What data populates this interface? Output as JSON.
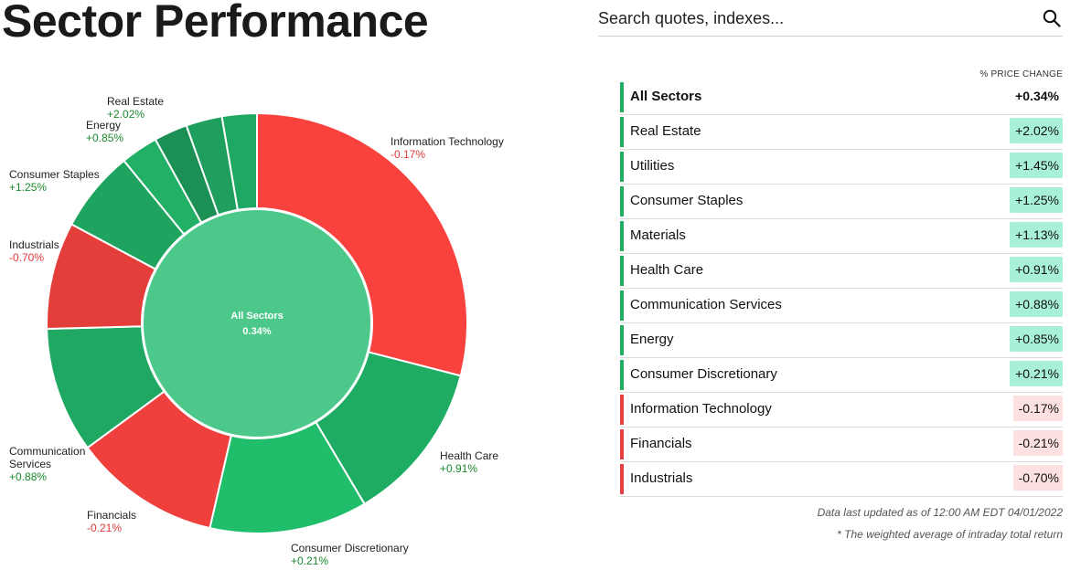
{
  "page": {
    "title": "Sector Performance"
  },
  "search": {
    "placeholder": "Search quotes, indexes..."
  },
  "colors": {
    "positive_text": "#1a8a2e",
    "negative_text": "#e03a3a",
    "positive_badge": "#a8f0da",
    "negative_badge": "#fde0e0",
    "positive_bar": "#1fae62",
    "negative_bar": "#e84040",
    "center_fill": "#4dc88b"
  },
  "chart_data": {
    "type": "pie",
    "center": {
      "label": "All Sectors",
      "value": "0.34%"
    },
    "start_at": "top, clockwise",
    "slices": [
      {
        "name": "Information Technology",
        "change": "-0.17%",
        "weight": 28.2,
        "color": "#f9423e"
      },
      {
        "name": "Health Care",
        "change": "+0.91%",
        "weight": 12.1,
        "color": "#1eab62"
      },
      {
        "name": "Consumer Discretionary",
        "change": "+0.21%",
        "weight": 11.8,
        "color": "#20bd6b"
      },
      {
        "name": "Financials",
        "change": "-0.21%",
        "weight": 11.0,
        "color": "#f0403d"
      },
      {
        "name": "Communication Services",
        "change": "+0.88%",
        "weight": 9.4,
        "color": "#1fa862"
      },
      {
        "name": "Industrials",
        "change": "-0.70%",
        "weight": 8.0,
        "color": "#e33e3a"
      },
      {
        "name": "Consumer Staples",
        "change": "+1.25%",
        "weight": 6.1,
        "color": "#1ea45e"
      },
      {
        "name": "Utilities",
        "change": "",
        "weight": 2.8,
        "color": "#22b066"
      },
      {
        "name": "Materials",
        "change": "",
        "weight": 2.5,
        "color": "#1c8f54"
      },
      {
        "name": "Energy",
        "change": "+0.85%",
        "weight": 2.7,
        "color": "#1f9f5d"
      },
      {
        "name": "Real Estate",
        "change": "+2.02%",
        "weight": 2.6,
        "color": "#1fa862"
      }
    ]
  },
  "labels": [
    {
      "lines": [
        "Information Technology"
      ],
      "change": "-0.17%"
    },
    {
      "lines": [
        "Health Care"
      ],
      "change": "+0.91%"
    },
    {
      "lines": [
        "Consumer Discretionary"
      ],
      "change": "+0.21%"
    },
    {
      "lines": [
        "Financials"
      ],
      "change": "-0.21%"
    },
    {
      "lines": [
        "Communication",
        "Services"
      ],
      "change": "+0.88%"
    },
    {
      "lines": [
        "Industrials"
      ],
      "change": "-0.70%"
    },
    {
      "lines": [
        "Consumer Staples"
      ],
      "change": "+1.25%"
    },
    {
      "lines": [
        "Energy"
      ],
      "change": "+0.85%"
    },
    {
      "lines": [
        "Real Estate"
      ],
      "change": "+2.02%"
    }
  ],
  "table": {
    "header": "% PRICE CHANGE",
    "rows": [
      {
        "name": "All Sectors",
        "value": "+0.34%",
        "direction": "up",
        "emphasis": true
      },
      {
        "name": "Real Estate",
        "value": "+2.02%",
        "direction": "up"
      },
      {
        "name": "Utilities",
        "value": "+1.45%",
        "direction": "up"
      },
      {
        "name": "Consumer Staples",
        "value": "+1.25%",
        "direction": "up"
      },
      {
        "name": "Materials",
        "value": "+1.13%",
        "direction": "up"
      },
      {
        "name": "Health Care",
        "value": "+0.91%",
        "direction": "up"
      },
      {
        "name": "Communication Services",
        "value": "+0.88%",
        "direction": "up"
      },
      {
        "name": "Energy",
        "value": "+0.85%",
        "direction": "up"
      },
      {
        "name": "Consumer Discretionary",
        "value": "+0.21%",
        "direction": "up"
      },
      {
        "name": "Information Technology",
        "value": "-0.17%",
        "direction": "down"
      },
      {
        "name": "Financials",
        "value": "-0.21%",
        "direction": "down"
      },
      {
        "name": "Industrials",
        "value": "-0.70%",
        "direction": "down"
      }
    ]
  },
  "footnotes": {
    "updated": "Data last updated as of 12:00 AM EDT 04/01/2022",
    "note": "* The weighted average of intraday total return"
  }
}
